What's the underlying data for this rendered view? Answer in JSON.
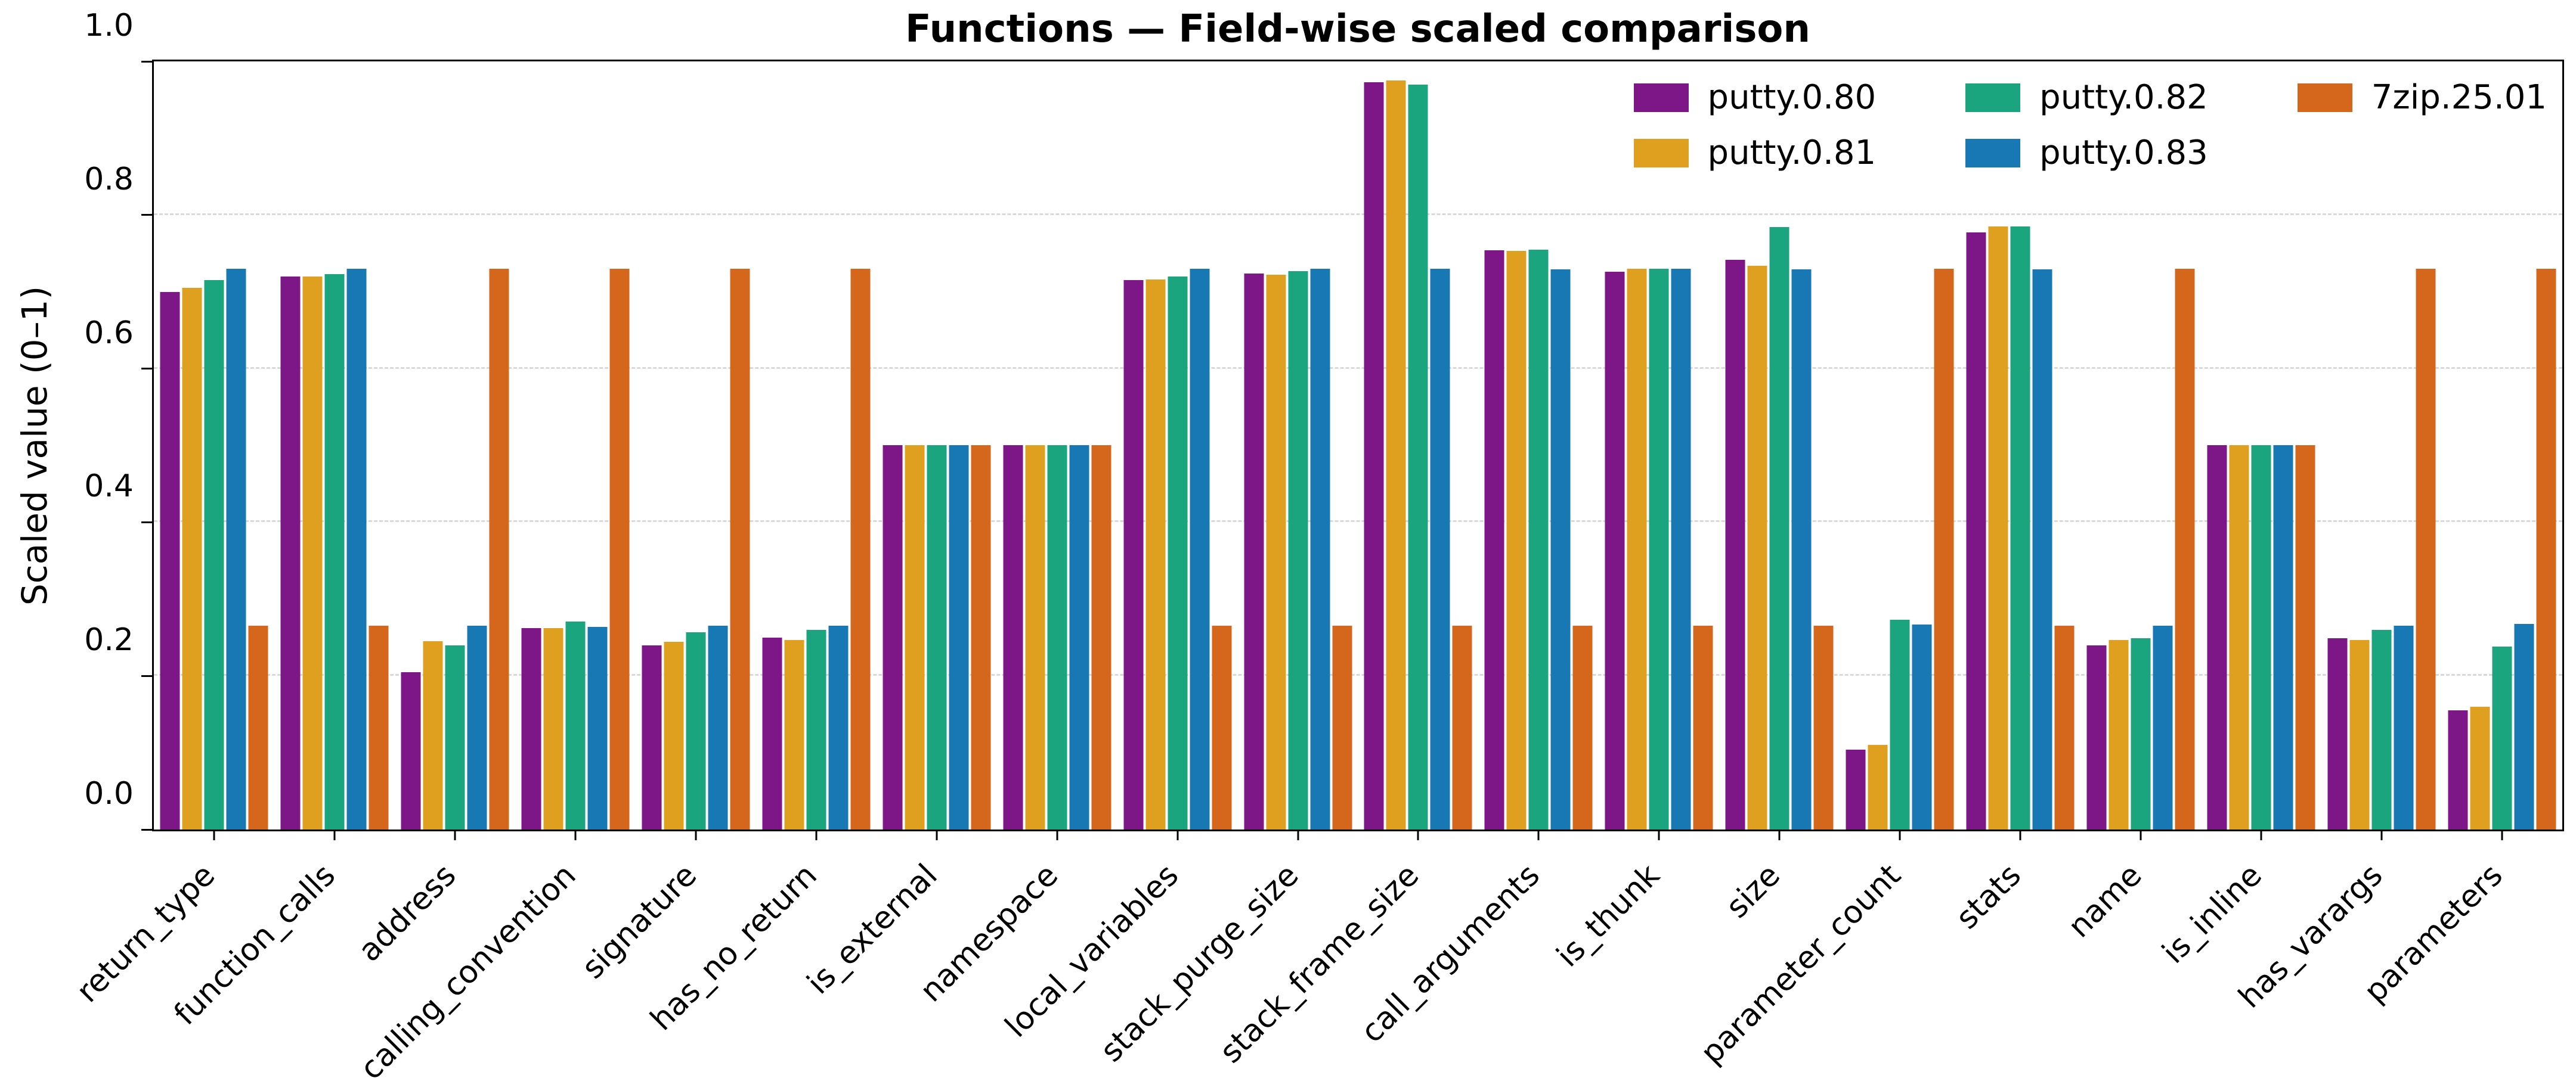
{
  "title": "Functions — Field-wise scaled comparison",
  "ylabel": "Scaled value (0–1)",
  "y_ticks": [
    "0.0",
    "0.2",
    "0.4",
    "0.6",
    "0.8",
    "1.0"
  ],
  "colors": {
    "background": "#ffffff",
    "axis": "#000000",
    "grid": "#d9d9d9",
    "text": "#000000"
  },
  "chart_data": {
    "type": "bar",
    "title": "Functions — Field-wise scaled comparison",
    "xlabel": "",
    "ylabel": "Scaled value (0–1)",
    "ylim": [
      0,
      1
    ],
    "grid": "horizontal dashed gridlines at 0.2 intervals",
    "legend_position": "upper right inside plot, 3 columns x 2 rows, no frame",
    "x_tick_rotation": 45,
    "categories": [
      "return_type",
      "function_calls",
      "address",
      "calling_convention",
      "signature",
      "has_no_return",
      "is_external",
      "namespace",
      "local_variables",
      "stack_purge_size",
      "stack_frame_size",
      "call_arguments",
      "is_thunk",
      "size",
      "parameter_count",
      "stats",
      "name",
      "is_inline",
      "has_varargs",
      "parameters"
    ],
    "series": [
      {
        "name": "putty.0.80",
        "color": "#7d1687",
        "values": [
          0.7,
          0.72,
          0.205,
          0.262,
          0.24,
          0.25,
          0.5,
          0.5,
          0.715,
          0.724,
          0.973,
          0.754,
          0.726,
          0.742,
          0.104,
          0.777,
          0.24,
          0.5,
          0.249,
          0.155
        ]
      },
      {
        "name": "putty.0.81",
        "color": "#e0a01f",
        "values": [
          0.705,
          0.72,
          0.245,
          0.262,
          0.244,
          0.247,
          0.5,
          0.5,
          0.716,
          0.722,
          0.975,
          0.753,
          0.73,
          0.734,
          0.11,
          0.785,
          0.247,
          0.5,
          0.247,
          0.16
        ]
      },
      {
        "name": "putty.0.82",
        "color": "#1ba57e",
        "values": [
          0.715,
          0.723,
          0.24,
          0.271,
          0.257,
          0.26,
          0.5,
          0.5,
          0.72,
          0.727,
          0.97,
          0.755,
          0.73,
          0.784,
          0.273,
          0.785,
          0.249,
          0.5,
          0.26,
          0.238
        ]
      },
      {
        "name": "putty.0.83",
        "color": "#1878b4",
        "values": [
          0.73,
          0.73,
          0.265,
          0.264,
          0.265,
          0.265,
          0.5,
          0.5,
          0.73,
          0.73,
          0.73,
          0.729,
          0.73,
          0.729,
          0.267,
          0.729,
          0.265,
          0.5,
          0.265,
          0.268
        ]
      },
      {
        "name": "7zip.25.01",
        "color": "#d4671c",
        "values": [
          0.265,
          0.265,
          0.73,
          0.73,
          0.73,
          0.73,
          0.5,
          0.5,
          0.265,
          0.265,
          0.265,
          0.265,
          0.265,
          0.265,
          0.73,
          0.265,
          0.73,
          0.5,
          0.73,
          0.73
        ]
      }
    ]
  }
}
